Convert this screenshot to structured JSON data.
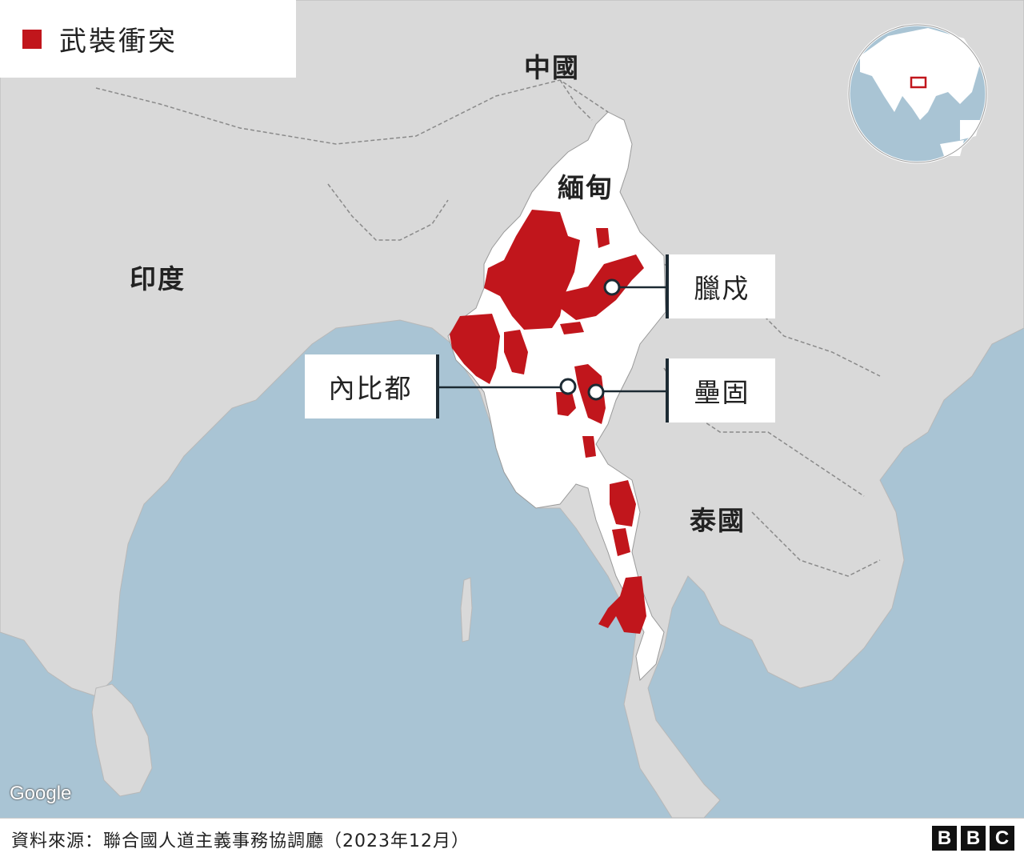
{
  "legend": {
    "label": "武裝衝突",
    "color": "#c1161c"
  },
  "countries": {
    "china": "中國",
    "myanmar": "緬甸",
    "india": "印度",
    "thailand": "泰國"
  },
  "cities": {
    "lashio": "臘戍",
    "naypyidaw": "內比都",
    "loikaw": "壘固"
  },
  "attribution": "Google",
  "source": "資料來源：聯合國人道主義事務協調廳（2023年12月）",
  "logo": [
    "B",
    "B",
    "C"
  ],
  "colors": {
    "sea": "#a9c4d4",
    "land": "#d9d9d9",
    "myanmar": "#ffffff",
    "conflict": "#c1161c",
    "leader_line": "#1c2a33"
  }
}
